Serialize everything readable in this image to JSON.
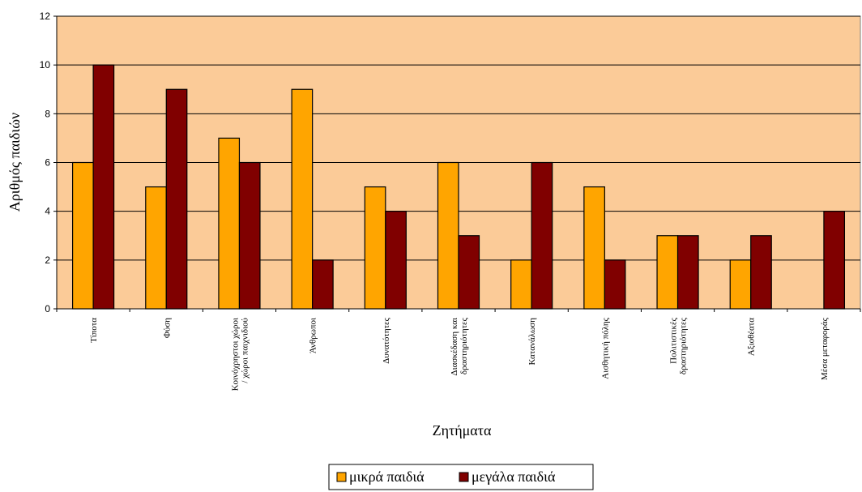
{
  "chart_data": {
    "type": "bar",
    "categories": [
      "Τίποτα",
      "Φύση",
      "Κοινόχρηστοι χώροι / χώροι παιχνιδιού",
      "Άνθρωποι",
      "Δυνατότητες",
      "Διασκέδαση και δραστηριότητες",
      "Κατανάλωση",
      "Αισθητική πόλης",
      "Πολιτιστικές δραστηριότητες",
      "Αξιοθέατα",
      "Μέσα μεταφοράς"
    ],
    "series": [
      {
        "name": "μικρά παιδιά",
        "color": "#FFA500",
        "values": [
          6,
          5,
          7,
          9,
          5,
          6,
          2,
          5,
          3,
          2,
          0
        ]
      },
      {
        "name": "μεγάλα παιδιά",
        "color": "#800000",
        "values": [
          10,
          9,
          6,
          2,
          4,
          3,
          6,
          2,
          3,
          3,
          4
        ]
      }
    ],
    "xlabel": "Ζητήματα",
    "ylabel": "Αριθμός παιδιών",
    "ylim": [
      0,
      12
    ],
    "yticks": [
      0,
      2,
      4,
      6,
      8,
      10,
      12
    ],
    "grid": true,
    "plot_background": "#FBCB98",
    "legend_position": "bottom"
  }
}
